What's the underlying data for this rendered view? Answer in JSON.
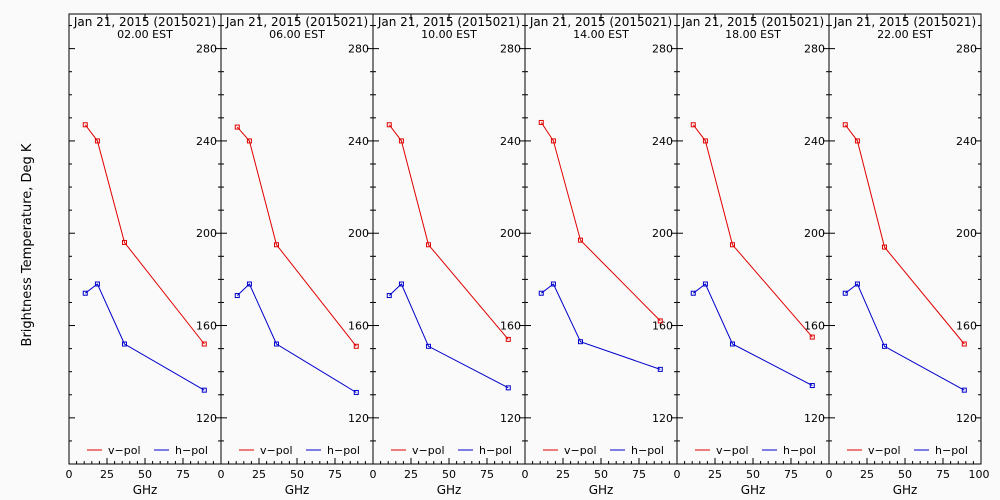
{
  "ylabel": "Brightness Temperature, Deg K",
  "xlabel": "GHz",
  "x_ticks": [
    "0",
    "25",
    "50",
    "75",
    "100"
  ],
  "y_ticks": [
    "120",
    "160",
    "200",
    "240",
    "280"
  ],
  "legend": {
    "v": "v−pol",
    "h": "h−pol"
  },
  "colors": {
    "v": "#e00000",
    "h": "#0000cc",
    "axis": "#000000",
    "background": "#fafafa"
  },
  "chart_data": [
    {
      "type": "line",
      "title": "Jan 21, 2015 (2015021)",
      "subtitle": "02.00 EST",
      "xlabel": "GHz",
      "ylabel": "Brightness Temperature, Deg K",
      "xlim": [
        0,
        100
      ],
      "ylim": [
        100,
        295
      ],
      "legend_position": "bottom",
      "series": [
        {
          "name": "v−pol",
          "color": "#e00000",
          "x": [
            10.7,
            18.7,
            36.5,
            89.0
          ],
          "y": [
            247,
            240,
            196,
            152
          ]
        },
        {
          "name": "h−pol",
          "color": "#0000cc",
          "x": [
            10.7,
            18.7,
            36.5,
            89.0
          ],
          "y": [
            174,
            178,
            152,
            132
          ]
        }
      ]
    },
    {
      "type": "line",
      "title": "Jan 21, 2015 (2015021)",
      "subtitle": "06.00 EST",
      "xlabel": "GHz",
      "ylabel": "Brightness Temperature, Deg K",
      "xlim": [
        0,
        100
      ],
      "ylim": [
        100,
        295
      ],
      "legend_position": "bottom",
      "series": [
        {
          "name": "v−pol",
          "color": "#e00000",
          "x": [
            10.7,
            18.7,
            36.5,
            89.0
          ],
          "y": [
            246,
            240,
            195,
            151
          ]
        },
        {
          "name": "h−pol",
          "color": "#0000cc",
          "x": [
            10.7,
            18.7,
            36.5,
            89.0
          ],
          "y": [
            173,
            178,
            152,
            131
          ]
        }
      ]
    },
    {
      "type": "line",
      "title": "Jan 21, 2015 (2015021)",
      "subtitle": "10.00 EST",
      "xlabel": "GHz",
      "ylabel": "Brightness Temperature, Deg K",
      "xlim": [
        0,
        100
      ],
      "ylim": [
        100,
        295
      ],
      "legend_position": "bottom",
      "series": [
        {
          "name": "v−pol",
          "color": "#e00000",
          "x": [
            10.7,
            18.7,
            36.5,
            89.0
          ],
          "y": [
            247,
            240,
            195,
            154
          ]
        },
        {
          "name": "h−pol",
          "color": "#0000cc",
          "x": [
            10.7,
            18.7,
            36.5,
            89.0
          ],
          "y": [
            173,
            178,
            151,
            133
          ]
        }
      ]
    },
    {
      "type": "line",
      "title": "Jan 21, 2015 (2015021)",
      "subtitle": "14.00 EST",
      "xlabel": "GHz",
      "ylabel": "Brightness Temperature, Deg K",
      "xlim": [
        0,
        100
      ],
      "ylim": [
        100,
        295
      ],
      "legend_position": "bottom",
      "series": [
        {
          "name": "v−pol",
          "color": "#e00000",
          "x": [
            10.7,
            18.7,
            36.5,
            89.0
          ],
          "y": [
            248,
            240,
            197,
            162
          ]
        },
        {
          "name": "h−pol",
          "color": "#0000cc",
          "x": [
            10.7,
            18.7,
            36.5,
            89.0
          ],
          "y": [
            174,
            178,
            153,
            141
          ]
        }
      ]
    },
    {
      "type": "line",
      "title": "Jan 21, 2015 (2015021)",
      "subtitle": "18.00 EST",
      "xlabel": "GHz",
      "ylabel": "Brightness Temperature, Deg K",
      "xlim": [
        0,
        100
      ],
      "ylim": [
        100,
        295
      ],
      "legend_position": "bottom",
      "series": [
        {
          "name": "v−pol",
          "color": "#e00000",
          "x": [
            10.7,
            18.7,
            36.5,
            89.0
          ],
          "y": [
            247,
            240,
            195,
            155
          ]
        },
        {
          "name": "h−pol",
          "color": "#0000cc",
          "x": [
            10.7,
            18.7,
            36.5,
            89.0
          ],
          "y": [
            174,
            178,
            152,
            134
          ]
        }
      ]
    },
    {
      "type": "line",
      "title": "Jan 21, 2015 (2015021)",
      "subtitle": "22.00 EST",
      "xlabel": "GHz",
      "ylabel": "Brightness Temperature, Deg K",
      "xlim": [
        0,
        100
      ],
      "ylim": [
        100,
        295
      ],
      "legend_position": "bottom",
      "series": [
        {
          "name": "v−pol",
          "color": "#e00000",
          "x": [
            10.7,
            18.7,
            36.5,
            89.0
          ],
          "y": [
            247,
            240,
            194,
            152
          ]
        },
        {
          "name": "h−pol",
          "color": "#0000cc",
          "x": [
            10.7,
            18.7,
            36.5,
            89.0
          ],
          "y": [
            174,
            178,
            151,
            132
          ]
        }
      ]
    }
  ]
}
